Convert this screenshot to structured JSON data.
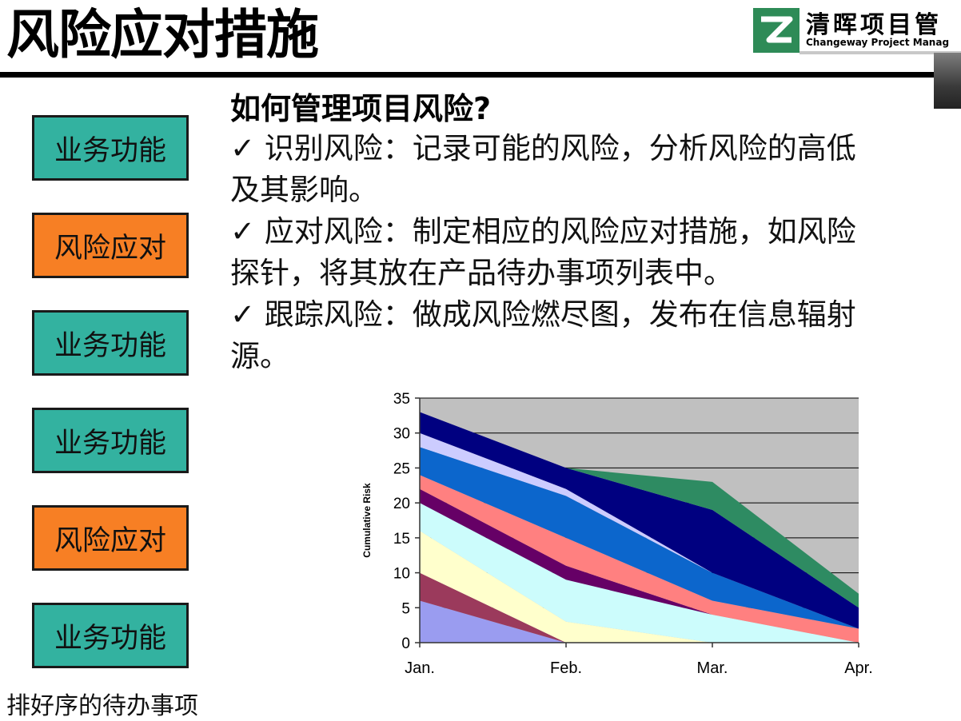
{
  "slide": {
    "title": "风险应对措施",
    "logo": {
      "name_cn": "清晖项目管",
      "name_en": "Changeway Project Manag"
    }
  },
  "backlog": {
    "items": [
      {
        "label": "业务功能",
        "kind": "feature",
        "color": "#33b2a0"
      },
      {
        "label": "风险应对",
        "kind": "risk",
        "color": "#f77f24"
      },
      {
        "label": "业务功能",
        "kind": "feature",
        "color": "#33b2a0"
      },
      {
        "label": "业务功能",
        "kind": "feature",
        "color": "#33b2a0"
      },
      {
        "label": "风险应对",
        "kind": "risk",
        "color": "#f77f24"
      },
      {
        "label": "业务功能",
        "kind": "feature",
        "color": "#33b2a0"
      }
    ],
    "caption": "排好序的待办事项"
  },
  "content": {
    "question": "如何管理项目风险?",
    "lines": [
      "✓ 识别风险：记录可能的风险，分析风险的高低",
      "及其影响。",
      "✓ 应对风险：制定相应的风险应对措施，如风险",
      "探针，将其放在产品待办事项列表中。",
      "✓ 跟踪风险：做成风险燃尽图，发布在信息辐射",
      "源。"
    ]
  },
  "chart_data": {
    "type": "area",
    "stacked": true,
    "categories": [
      "Jan.",
      "Feb.",
      "Mar.",
      "Apr."
    ],
    "ylabel": "Cumulative Risk",
    "ylim": [
      0,
      35
    ],
    "yticks": [
      0,
      5,
      10,
      15,
      20,
      25,
      30,
      35
    ],
    "grid": true,
    "plot_background": "#c0c0c0",
    "series": [
      {
        "values": [
          6,
          0,
          0,
          0
        ],
        "color": "#9a9cf0"
      },
      {
        "values": [
          4,
          0,
          0,
          0
        ],
        "color": "#9b3a5c"
      },
      {
        "values": [
          6,
          3,
          0,
          0
        ],
        "color": "#ffffcc"
      },
      {
        "values": [
          4,
          6,
          4,
          0
        ],
        "color": "#ccfcfc"
      },
      {
        "values": [
          2,
          2,
          0,
          0
        ],
        "color": "#660066"
      },
      {
        "values": [
          2,
          4,
          2,
          2
        ],
        "color": "#ff8080"
      },
      {
        "values": [
          4,
          6,
          4,
          0
        ],
        "color": "#0c66cc"
      },
      {
        "values": [
          2,
          1,
          0,
          0
        ],
        "color": "#ccccff"
      },
      {
        "values": [
          3,
          3,
          9,
          3
        ],
        "color": "#000080"
      },
      {
        "values": [
          0,
          0,
          4,
          2
        ],
        "color": "#2e8b62"
      }
    ]
  }
}
